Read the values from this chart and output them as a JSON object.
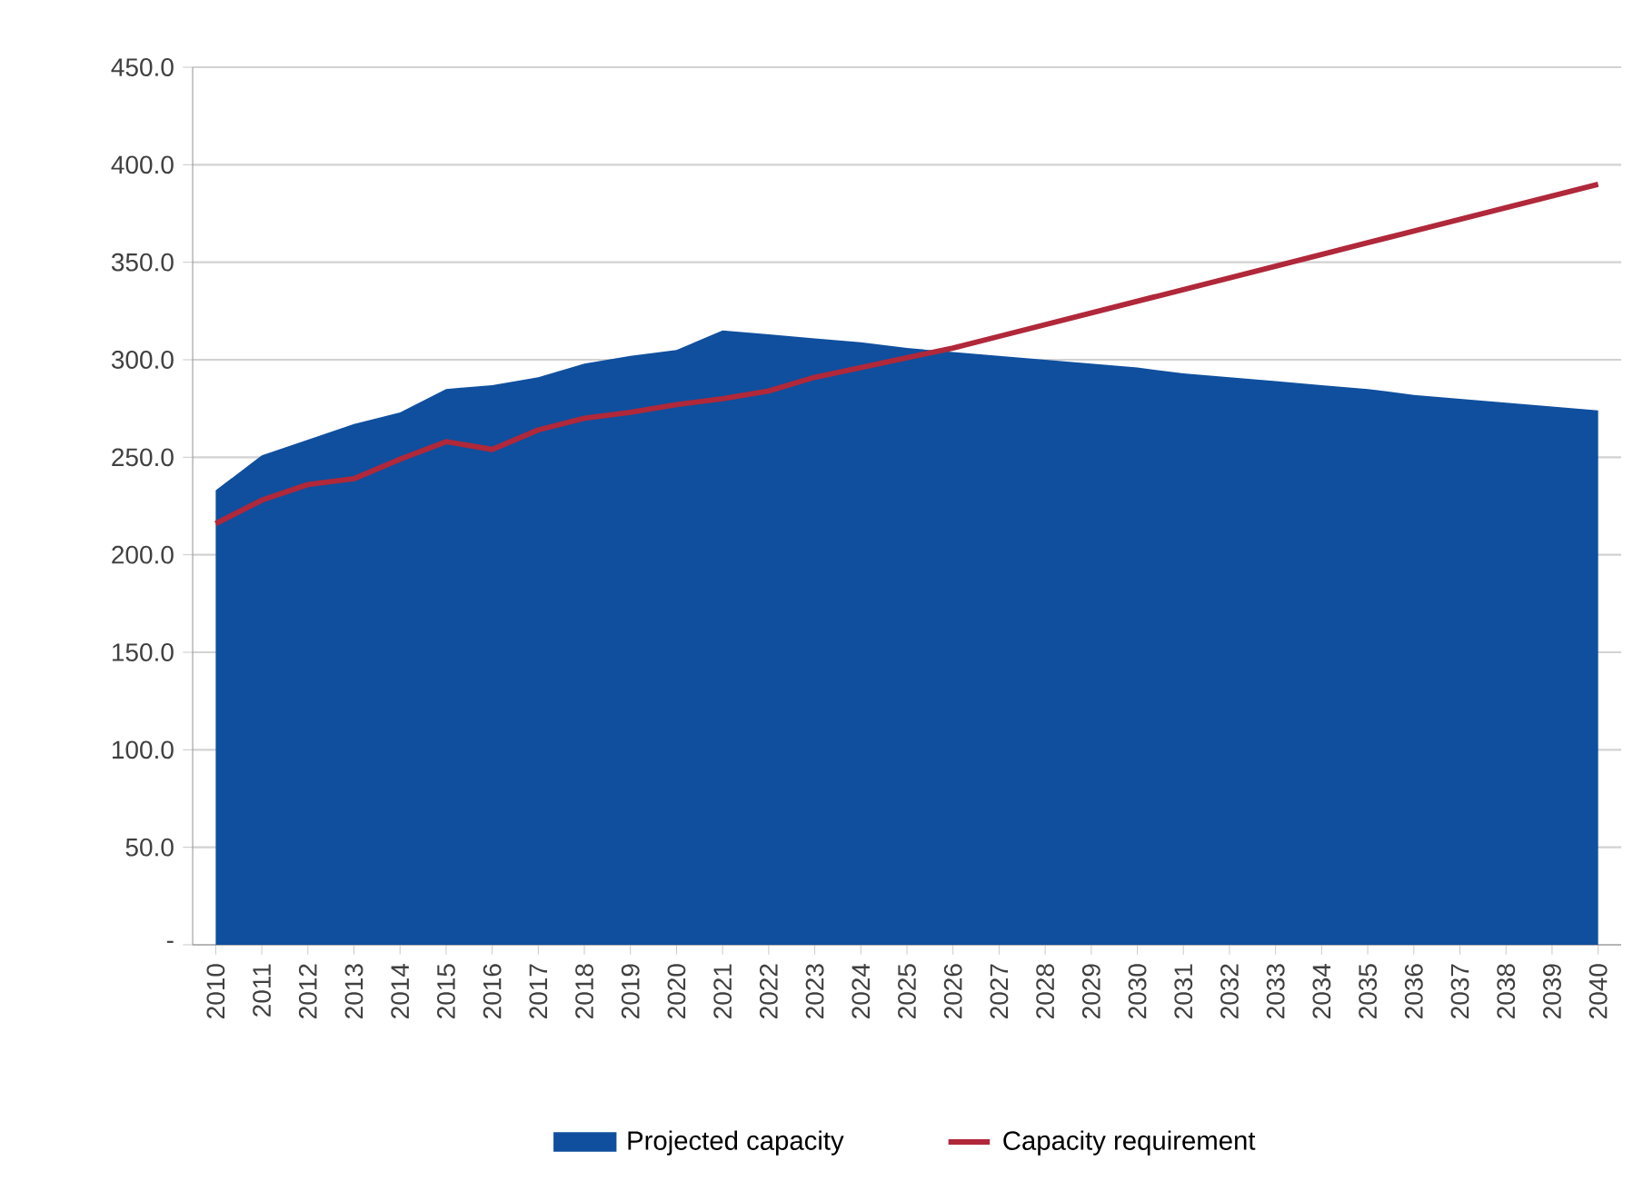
{
  "chart_data": {
    "type": "area",
    "categories": [
      "2010",
      "2011",
      "2012",
      "2013",
      "2014",
      "2015",
      "2016",
      "2017",
      "2018",
      "2019",
      "2020",
      "2021",
      "2022",
      "2023",
      "2024",
      "2025",
      "2026",
      "2027",
      "2028",
      "2029",
      "2030",
      "2031",
      "2032",
      "2033",
      "2034",
      "2035",
      "2036",
      "2037",
      "2038",
      "2039",
      "2040"
    ],
    "series": [
      {
        "name": "Projected capacity",
        "color": "#0f4f9e",
        "values": [
          233,
          251,
          259,
          267,
          273,
          285,
          287,
          291,
          298,
          302,
          305,
          315,
          313,
          311,
          309,
          306,
          304,
          302,
          300,
          298,
          296,
          293,
          291,
          289,
          287,
          285,
          282,
          280,
          278,
          276,
          274
        ]
      },
      {
        "name": "Capacity requirement",
        "type": "line",
        "color": "#b0283a",
        "values": [
          216,
          228,
          236,
          239,
          249,
          258,
          254,
          264,
          270,
          273,
          277,
          280,
          284,
          291,
          296,
          301,
          306,
          312,
          318,
          324,
          330,
          336,
          342,
          348,
          354,
          360,
          366,
          372,
          378,
          384,
          390
        ]
      }
    ],
    "ylim": [
      0,
      450
    ],
    "yticks": [
      {
        "value": 0,
        "label": "-"
      },
      {
        "value": 50,
        "label": "50.0"
      },
      {
        "value": 100,
        "label": "100.0"
      },
      {
        "value": 150,
        "label": "150.0"
      },
      {
        "value": 200,
        "label": "200.0"
      },
      {
        "value": 250,
        "label": "250.0"
      },
      {
        "value": 300,
        "label": "300.0"
      },
      {
        "value": 350,
        "label": "350.0"
      },
      {
        "value": 400,
        "label": "400.0"
      },
      {
        "value": 450,
        "label": "450.0"
      }
    ],
    "grid": "y",
    "legend": "bottom"
  }
}
